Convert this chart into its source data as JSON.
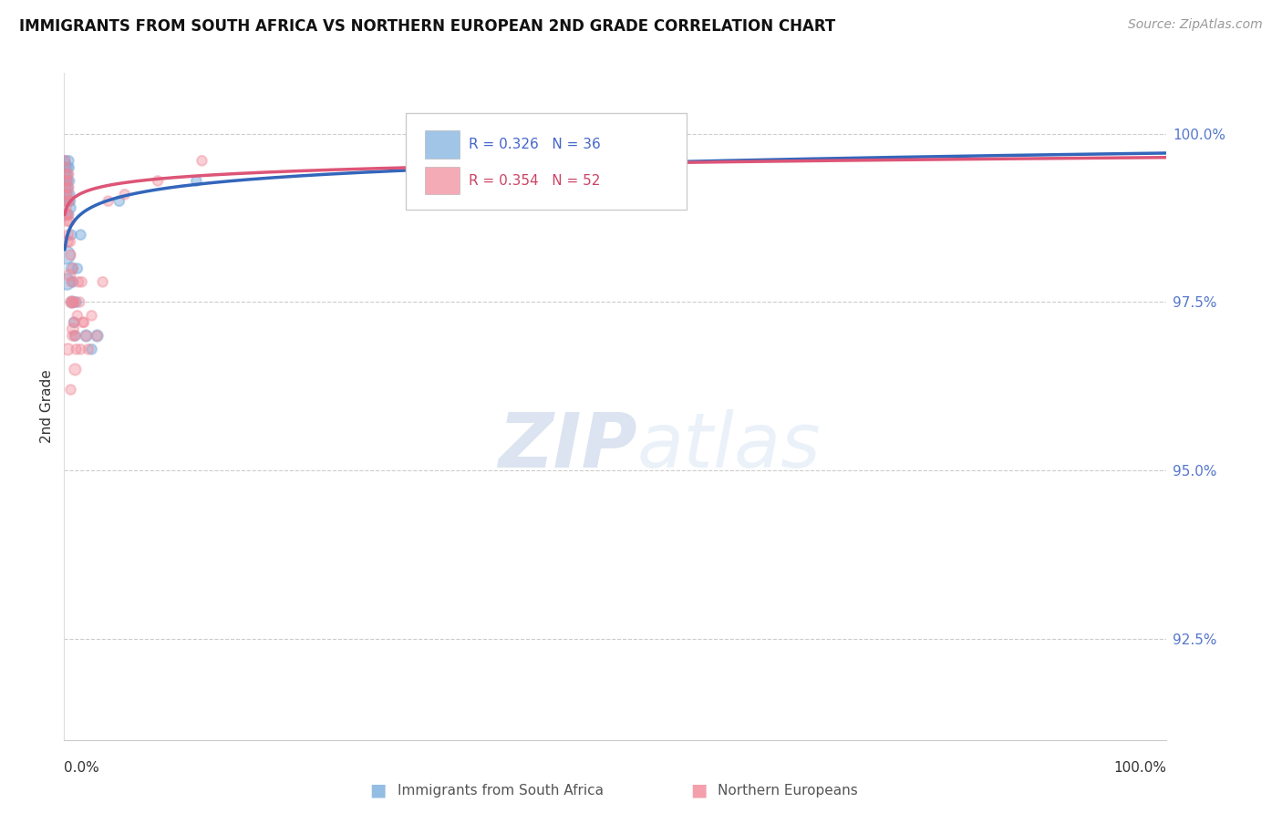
{
  "title": "IMMIGRANTS FROM SOUTH AFRICA VS NORTHERN EUROPEAN 2ND GRADE CORRELATION CHART",
  "source": "Source: ZipAtlas.com",
  "ylabel": "2nd Grade",
  "yticks": [
    92.5,
    95.0,
    97.5,
    100.0
  ],
  "ytick_labels": [
    "92.5%",
    "95.0%",
    "97.5%",
    "100.0%"
  ],
  "xmin": 0.0,
  "xmax": 100.0,
  "ymin": 91.0,
  "ymax": 100.9,
  "blue_label": "Immigrants from South Africa",
  "pink_label": "Northern Europeans",
  "blue_R": "0.326",
  "blue_N": "36",
  "pink_R": "0.354",
  "pink_N": "52",
  "blue_color": "#7aaddd",
  "pink_color": "#f08898",
  "blue_line_color": "#3366bb",
  "pink_line_color": "#dd5577",
  "watermark_zip": "ZIP",
  "watermark_atlas": "atlas",
  "blue_x": [
    0.08,
    0.1,
    0.12,
    0.15,
    0.18,
    0.2,
    0.22,
    0.25,
    0.28,
    0.3,
    0.32,
    0.35,
    0.38,
    0.4,
    0.42,
    0.45,
    0.48,
    0.5,
    0.55,
    0.6,
    0.65,
    0.7,
    0.75,
    0.8,
    0.9,
    1.0,
    1.1,
    1.2,
    1.5,
    2.0,
    2.5,
    3.0,
    0.15,
    0.25,
    5.0,
    12.0
  ],
  "blue_y": [
    99.5,
    99.6,
    99.4,
    99.3,
    99.2,
    99.0,
    98.8,
    99.1,
    99.3,
    99.5,
    99.4,
    99.2,
    99.0,
    98.8,
    99.6,
    99.5,
    99.3,
    99.1,
    99.0,
    98.9,
    98.5,
    98.0,
    97.5,
    97.8,
    97.2,
    97.0,
    97.5,
    98.0,
    98.5,
    97.0,
    96.8,
    97.0,
    98.2,
    97.8,
    99.0,
    99.3
  ],
  "blue_sizes": [
    60,
    60,
    60,
    60,
    60,
    60,
    60,
    60,
    60,
    60,
    60,
    60,
    60,
    60,
    60,
    60,
    60,
    60,
    60,
    60,
    60,
    80,
    80,
    60,
    60,
    60,
    60,
    60,
    60,
    80,
    60,
    80,
    200,
    150,
    60,
    60
  ],
  "pink_x": [
    0.08,
    0.1,
    0.12,
    0.15,
    0.18,
    0.2,
    0.22,
    0.25,
    0.28,
    0.3,
    0.32,
    0.35,
    0.38,
    0.4,
    0.42,
    0.45,
    0.5,
    0.55,
    0.6,
    0.65,
    0.7,
    0.75,
    0.8,
    0.85,
    0.9,
    1.0,
    1.1,
    1.2,
    1.4,
    1.6,
    1.8,
    2.0,
    2.5,
    3.5,
    5.5,
    8.5,
    12.5,
    0.18,
    0.28,
    0.35,
    0.5,
    0.65,
    0.8,
    1.0,
    1.3,
    1.7,
    2.2,
    3.0,
    4.0,
    0.6,
    0.9,
    1.5
  ],
  "pink_y": [
    99.6,
    99.5,
    99.3,
    99.1,
    98.9,
    99.2,
    99.4,
    99.0,
    98.7,
    99.3,
    99.1,
    98.8,
    98.5,
    99.4,
    99.2,
    99.0,
    98.7,
    98.4,
    98.2,
    97.8,
    97.5,
    97.0,
    98.0,
    97.5,
    97.2,
    97.0,
    96.8,
    97.3,
    97.5,
    97.8,
    97.2,
    97.0,
    97.3,
    97.8,
    99.1,
    99.3,
    99.6,
    98.8,
    98.4,
    96.8,
    97.9,
    97.5,
    97.1,
    96.5,
    97.8,
    97.2,
    96.8,
    97.0,
    99.0,
    96.2,
    97.5,
    96.8
  ],
  "pink_sizes": [
    60,
    60,
    60,
    60,
    60,
    60,
    60,
    60,
    60,
    60,
    60,
    60,
    60,
    60,
    60,
    60,
    60,
    60,
    60,
    60,
    60,
    60,
    60,
    60,
    60,
    60,
    60,
    60,
    60,
    60,
    60,
    60,
    60,
    60,
    60,
    60,
    60,
    80,
    80,
    80,
    80,
    80,
    80,
    80,
    60,
    60,
    60,
    60,
    60,
    60,
    60,
    60
  ]
}
